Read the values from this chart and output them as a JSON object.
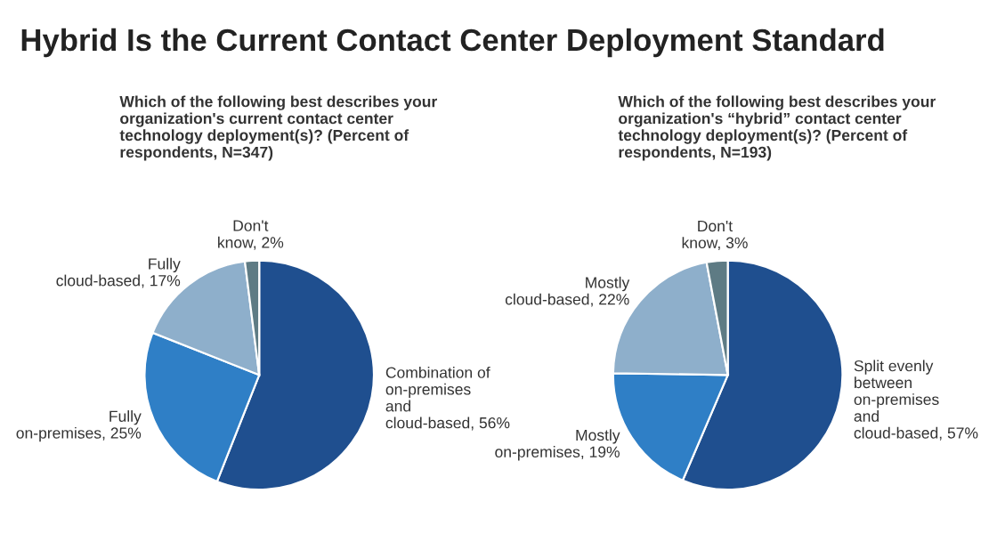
{
  "chart_data": [
    {
      "type": "pie",
      "title": "Hybrid Is the Current Contact Center Deployment Standard",
      "subtitle": "Which of the following best describes your organization's current contact center technology deployment(s)? (Percent of respondents, N=347)",
      "categories": [
        "Combination of on-premises and cloud-based",
        "Fully on-premises",
        "Fully cloud-based",
        "Don't know"
      ],
      "values": [
        56,
        25,
        17,
        2
      ],
      "value_labels": [
        "56%",
        "25%",
        "17%",
        "2%"
      ],
      "colors": [
        "#1f4f8f",
        "#2f7fc6",
        "#8eafcb",
        "#5e7b84"
      ]
    },
    {
      "type": "pie",
      "subtitle": "Which of the following best describes your organization's “hybrid” contact center technology deployment(s)? (Percent of respondents, N=193)",
      "categories": [
        "Split evenly between on-premises and cloud-based",
        "Mostly on-premises",
        "Mostly cloud-based",
        "Don't know"
      ],
      "values": [
        57,
        19,
        22,
        3
      ],
      "value_labels": [
        "57%",
        "19%",
        "22%",
        "3%"
      ],
      "colors": [
        "#1f4f8f",
        "#2f7fc6",
        "#8eafcb",
        "#5e7b84"
      ]
    }
  ]
}
